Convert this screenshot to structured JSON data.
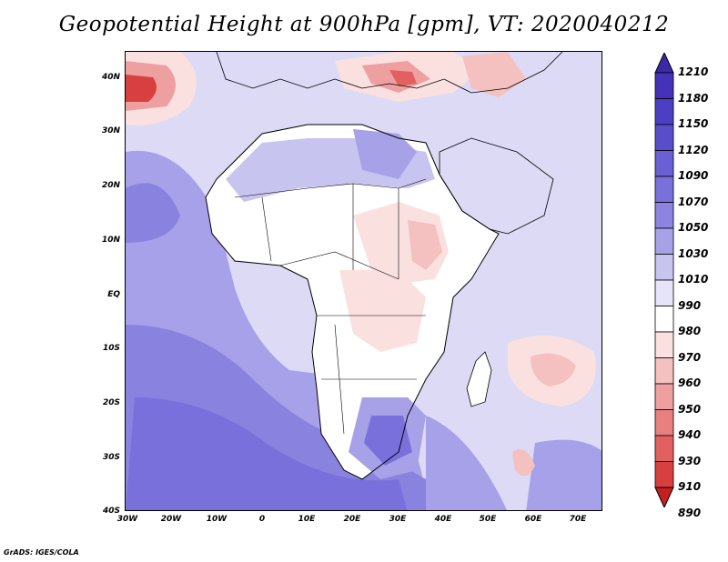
{
  "title": "Geopotential Height at 900hPa [gpm], VT: 2020040212",
  "y_axis_labels": [
    "40N",
    "30N",
    "20N",
    "10N",
    "EQ",
    "10S",
    "20S",
    "30S",
    "40S"
  ],
  "x_axis_labels": [
    "30W",
    "20W",
    "10W",
    "0",
    "10E",
    "20E",
    "30E",
    "40E",
    "50E",
    "60E",
    "70E"
  ],
  "colorbar": {
    "levels": [
      "1210",
      "1180",
      "1150",
      "1120",
      "1090",
      "1070",
      "1050",
      "1030",
      "1010",
      "990",
      "980",
      "970",
      "960",
      "950",
      "940",
      "930",
      "910",
      "890"
    ],
    "colors": [
      "#3a2aa8",
      "#4433b8",
      "#4d3fc4",
      "#5a4dcc",
      "#6a5fd4",
      "#7a70db",
      "#8c84e0",
      "#a7a2e8",
      "#c7c4f0",
      "#e6e4f8",
      "#ffffff",
      "#fbe0e0",
      "#f4c0c0",
      "#eea0a0",
      "#e88080",
      "#e26060",
      "#d84040",
      "#c42020"
    ]
  },
  "credit": "GrADS: IGES/COLA"
}
